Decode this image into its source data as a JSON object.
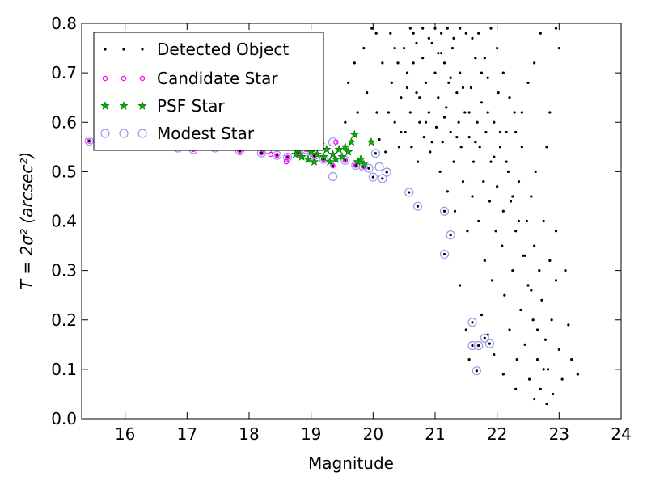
{
  "chart_data": {
    "type": "scatter",
    "title": "",
    "xlabel": "Magnitude",
    "ylabel": "T = 2σ² (arcsec²)",
    "xlim": [
      15.3,
      24
    ],
    "ylim": [
      0,
      0.8
    ],
    "x_ticks": [
      "16",
      "17",
      "18",
      "19",
      "20",
      "21",
      "22",
      "23",
      "24"
    ],
    "y_ticks": [
      "0.0",
      "0.1",
      "0.2",
      "0.3",
      "0.4",
      "0.5",
      "0.6",
      "0.7",
      "0.8"
    ],
    "grid": false,
    "legend_position": "top-left",
    "colors": {
      "detected": "#000000",
      "candidate": "#ff00ff",
      "psf_fill": "#00b400",
      "psf_edge": "#006400",
      "modest": "#9999ee"
    },
    "series": [
      {
        "name": "Detected Object",
        "marker": "dot",
        "points": [
          [
            15.42,
            0.562
          ],
          [
            15.95,
            0.551
          ],
          [
            16.35,
            0.552
          ],
          [
            16.85,
            0.548
          ],
          [
            17.1,
            0.545
          ],
          [
            17.45,
            0.548
          ],
          [
            17.85,
            0.542
          ],
          [
            18.2,
            0.538
          ],
          [
            18.45,
            0.533
          ],
          [
            18.62,
            0.529
          ],
          [
            18.8,
            0.537
          ],
          [
            18.92,
            0.545
          ],
          [
            19.05,
            0.532
          ],
          [
            19.2,
            0.525
          ],
          [
            19.35,
            0.512
          ],
          [
            19.55,
            0.523
          ],
          [
            19.72,
            0.513
          ],
          [
            19.84,
            0.51
          ],
          [
            19.93,
            0.507
          ],
          [
            20.0,
            0.489
          ],
          [
            20.04,
            0.537
          ],
          [
            20.15,
            0.486
          ],
          [
            20.22,
            0.499
          ],
          [
            20.58,
            0.458
          ],
          [
            20.72,
            0.43
          ],
          [
            21.15,
            0.42
          ],
          [
            21.25,
            0.372
          ],
          [
            21.15,
            0.333
          ],
          [
            21.6,
            0.195
          ],
          [
            21.6,
            0.148
          ],
          [
            21.7,
            0.148
          ],
          [
            21.8,
            0.163
          ],
          [
            21.88,
            0.152
          ],
          [
            21.67,
            0.097
          ],
          [
            19.98,
            0.79
          ],
          [
            20.05,
            0.78
          ],
          [
            20.06,
            0.62
          ],
          [
            20.1,
            0.565
          ],
          [
            20.2,
            0.54
          ],
          [
            20.28,
            0.78
          ],
          [
            20.3,
            0.68
          ],
          [
            20.35,
            0.6
          ],
          [
            20.4,
            0.72
          ],
          [
            20.42,
            0.55
          ],
          [
            20.45,
            0.65
          ],
          [
            20.5,
            0.75
          ],
          [
            20.52,
            0.58
          ],
          [
            20.55,
            0.7
          ],
          [
            20.6,
            0.62
          ],
          [
            20.62,
            0.55
          ],
          [
            20.65,
            0.78
          ],
          [
            20.7,
            0.66
          ],
          [
            20.72,
            0.52
          ],
          [
            20.75,
            0.6
          ],
          [
            20.8,
            0.73
          ],
          [
            20.82,
            0.57
          ],
          [
            20.85,
            0.68
          ],
          [
            20.9,
            0.62
          ],
          [
            20.92,
            0.54
          ],
          [
            20.95,
            0.76
          ],
          [
            21.0,
            0.7
          ],
          [
            21.02,
            0.59
          ],
          [
            21.05,
            0.65
          ],
          [
            21.08,
            0.5
          ],
          [
            21.1,
            0.78
          ],
          [
            21.12,
            0.56
          ],
          [
            21.15,
            0.72
          ],
          [
            21.18,
            0.63
          ],
          [
            21.2,
            0.46
          ],
          [
            21.22,
            0.68
          ],
          [
            21.25,
            0.58
          ],
          [
            21.28,
            0.75
          ],
          [
            21.3,
            0.52
          ],
          [
            21.32,
            0.42
          ],
          [
            21.35,
            0.66
          ],
          [
            21.38,
            0.6
          ],
          [
            21.4,
            0.7
          ],
          [
            21.42,
            0.55
          ],
          [
            21.45,
            0.48
          ],
          [
            21.48,
            0.62
          ],
          [
            21.5,
            0.78
          ],
          [
            21.52,
            0.38
          ],
          [
            21.55,
            0.57
          ],
          [
            21.58,
            0.67
          ],
          [
            21.6,
            0.45
          ],
          [
            21.62,
            0.52
          ],
          [
            21.65,
            0.73
          ],
          [
            21.68,
            0.6
          ],
          [
            21.7,
            0.4
          ],
          [
            21.72,
            0.55
          ],
          [
            21.75,
            0.64
          ],
          [
            21.78,
            0.48
          ],
          [
            21.8,
            0.32
          ],
          [
            21.82,
            0.58
          ],
          [
            21.85,
            0.69
          ],
          [
            21.88,
            0.44
          ],
          [
            21.9,
            0.52
          ],
          [
            21.92,
            0.28
          ],
          [
            21.95,
            0.6
          ],
          [
            21.98,
            0.38
          ],
          [
            22.0,
            0.47
          ],
          [
            22.02,
            0.66
          ],
          [
            22.05,
            0.55
          ],
          [
            22.08,
            0.35
          ],
          [
            22.1,
            0.42
          ],
          [
            22.12,
            0.25
          ],
          [
            22.15,
            0.58
          ],
          [
            22.18,
            0.5
          ],
          [
            22.2,
            0.18
          ],
          [
            22.22,
            0.44
          ],
          [
            22.25,
            0.3
          ],
          [
            22.28,
            0.62
          ],
          [
            22.3,
            0.38
          ],
          [
            22.32,
            0.12
          ],
          [
            22.35,
            0.48
          ],
          [
            22.38,
            0.22
          ],
          [
            22.4,
            0.55
          ],
          [
            22.42,
            0.33
          ],
          [
            22.45,
            0.15
          ],
          [
            22.48,
            0.4
          ],
          [
            22.5,
            0.27
          ],
          [
            22.52,
            0.08
          ],
          [
            22.55,
            0.45
          ],
          [
            22.58,
            0.2
          ],
          [
            22.6,
            0.35
          ],
          [
            22.62,
            0.5
          ],
          [
            22.65,
            0.12
          ],
          [
            22.68,
            0.3
          ],
          [
            22.7,
            0.06
          ],
          [
            22.72,
            0.24
          ],
          [
            22.75,
            0.4
          ],
          [
            22.78,
            0.16
          ],
          [
            22.8,
            0.55
          ],
          [
            22.82,
            0.1
          ],
          [
            22.85,
            0.32
          ],
          [
            22.88,
            0.2
          ],
          [
            22.9,
            0.05
          ],
          [
            22.95,
            0.28
          ],
          [
            23.0,
            0.14
          ],
          [
            23.05,
            0.08
          ],
          [
            23.1,
            0.3
          ],
          [
            23.15,
            0.19
          ],
          [
            23.2,
            0.12
          ],
          [
            23.3,
            0.09
          ],
          [
            20.15,
            0.72
          ],
          [
            20.25,
            0.62
          ],
          [
            20.35,
            0.75
          ],
          [
            20.45,
            0.58
          ],
          [
            20.55,
            0.67
          ],
          [
            20.65,
            0.72
          ],
          [
            20.75,
            0.65
          ],
          [
            20.85,
            0.6
          ],
          [
            20.95,
            0.56
          ],
          [
            21.05,
            0.74
          ],
          [
            21.15,
            0.61
          ],
          [
            21.25,
            0.69
          ],
          [
            21.35,
            0.57
          ],
          [
            21.45,
            0.67
          ],
          [
            21.55,
            0.62
          ],
          [
            21.65,
            0.56
          ],
          [
            21.75,
            0.7
          ],
          [
            21.85,
            0.62
          ],
          [
            21.95,
            0.53
          ],
          [
            22.05,
            0.58
          ],
          [
            22.15,
            0.52
          ],
          [
            22.25,
            0.45
          ],
          [
            22.35,
            0.4
          ],
          [
            22.45,
            0.33
          ],
          [
            22.55,
            0.26
          ],
          [
            22.65,
            0.18
          ],
          [
            22.75,
            0.1
          ],
          [
            22.85,
            0.62
          ],
          [
            22.95,
            0.38
          ],
          [
            21.4,
            0.27
          ],
          [
            21.5,
            0.18
          ],
          [
            21.55,
            0.12
          ],
          [
            21.75,
            0.21
          ],
          [
            21.85,
            0.17
          ],
          [
            21.95,
            0.13
          ],
          [
            22.1,
            0.09
          ],
          [
            22.3,
            0.06
          ],
          [
            22.6,
            0.04
          ],
          [
            22.8,
            0.03
          ],
          [
            22.95,
            0.79
          ],
          [
            23.0,
            0.75
          ],
          [
            22.7,
            0.78
          ],
          [
            22.6,
            0.72
          ],
          [
            22.5,
            0.68
          ],
          [
            22.4,
            0.62
          ],
          [
            22.3,
            0.58
          ],
          [
            22.2,
            0.65
          ],
          [
            22.1,
            0.7
          ],
          [
            22.0,
            0.75
          ],
          [
            21.9,
            0.79
          ],
          [
            21.8,
            0.73
          ],
          [
            21.7,
            0.78
          ],
          [
            21.6,
            0.77
          ],
          [
            21.4,
            0.79
          ],
          [
            21.3,
            0.77
          ],
          [
            21.2,
            0.79
          ],
          [
            21.1,
            0.74
          ],
          [
            21.0,
            0.79
          ],
          [
            20.9,
            0.77
          ],
          [
            20.8,
            0.79
          ],
          [
            20.7,
            0.76
          ],
          [
            20.6,
            0.79
          ],
          [
            19.85,
            0.75
          ],
          [
            19.7,
            0.72
          ],
          [
            19.9,
            0.66
          ],
          [
            19.6,
            0.68
          ],
          [
            19.75,
            0.62
          ],
          [
            19.55,
            0.6
          ]
        ]
      },
      {
        "name": "Candidate Star",
        "marker": "circle-small",
        "points": [
          [
            15.42,
            0.562
          ],
          [
            15.95,
            0.551
          ],
          [
            16.35,
            0.552
          ],
          [
            16.85,
            0.548
          ],
          [
            17.1,
            0.545
          ],
          [
            17.45,
            0.548
          ],
          [
            17.85,
            0.542
          ],
          [
            18.2,
            0.538
          ],
          [
            18.45,
            0.533
          ],
          [
            18.62,
            0.529
          ],
          [
            18.8,
            0.537
          ],
          [
            18.92,
            0.545
          ],
          [
            19.05,
            0.532
          ],
          [
            19.2,
            0.525
          ],
          [
            19.35,
            0.512
          ],
          [
            19.55,
            0.523
          ],
          [
            19.72,
            0.513
          ],
          [
            19.84,
            0.51
          ],
          [
            18.35,
            0.535
          ],
          [
            18.6,
            0.52
          ],
          [
            19.0,
            0.55
          ],
          [
            19.4,
            0.56
          ]
        ]
      },
      {
        "name": "PSF Star",
        "marker": "star",
        "points": [
          [
            18.75,
            0.535
          ],
          [
            18.8,
            0.545
          ],
          [
            18.85,
            0.53
          ],
          [
            18.9,
            0.55
          ],
          [
            18.95,
            0.525
          ],
          [
            19.0,
            0.54
          ],
          [
            19.05,
            0.52
          ],
          [
            19.1,
            0.535
          ],
          [
            19.15,
            0.555
          ],
          [
            19.2,
            0.53
          ],
          [
            19.25,
            0.545
          ],
          [
            19.3,
            0.52
          ],
          [
            19.35,
            0.535
          ],
          [
            19.4,
            0.525
          ],
          [
            19.45,
            0.545
          ],
          [
            19.5,
            0.53
          ],
          [
            19.55,
            0.55
          ],
          [
            19.6,
            0.54
          ],
          [
            19.65,
            0.56
          ],
          [
            19.7,
            0.575
          ],
          [
            19.75,
            0.52
          ],
          [
            19.8,
            0.525
          ],
          [
            19.85,
            0.515
          ],
          [
            19.97,
            0.56
          ]
        ]
      },
      {
        "name": "Modest Star",
        "marker": "circle-large",
        "points": [
          [
            15.42,
            0.562
          ],
          [
            15.95,
            0.575
          ],
          [
            16.35,
            0.552
          ],
          [
            16.85,
            0.548
          ],
          [
            17.1,
            0.545
          ],
          [
            17.45,
            0.548
          ],
          [
            17.85,
            0.542
          ],
          [
            18.2,
            0.538
          ],
          [
            18.45,
            0.533
          ],
          [
            18.62,
            0.529
          ],
          [
            18.8,
            0.537
          ],
          [
            18.92,
            0.545
          ],
          [
            19.05,
            0.532
          ],
          [
            19.2,
            0.525
          ],
          [
            19.35,
            0.49
          ],
          [
            19.55,
            0.523
          ],
          [
            19.72,
            0.513
          ],
          [
            19.84,
            0.51
          ],
          [
            19.93,
            0.507
          ],
          [
            20.0,
            0.489
          ],
          [
            20.04,
            0.537
          ],
          [
            20.15,
            0.486
          ],
          [
            20.22,
            0.499
          ],
          [
            20.58,
            0.458
          ],
          [
            20.72,
            0.43
          ],
          [
            21.15,
            0.42
          ],
          [
            21.25,
            0.372
          ],
          [
            21.15,
            0.333
          ],
          [
            21.6,
            0.195
          ],
          [
            21.6,
            0.148
          ],
          [
            21.7,
            0.148
          ],
          [
            21.8,
            0.163
          ],
          [
            21.88,
            0.152
          ],
          [
            21.67,
            0.097
          ],
          [
            16.0,
            0.578
          ],
          [
            17.3,
            0.561
          ],
          [
            18.3,
            0.545
          ],
          [
            19.35,
            0.56
          ],
          [
            20.1,
            0.51
          ]
        ]
      }
    ]
  }
}
